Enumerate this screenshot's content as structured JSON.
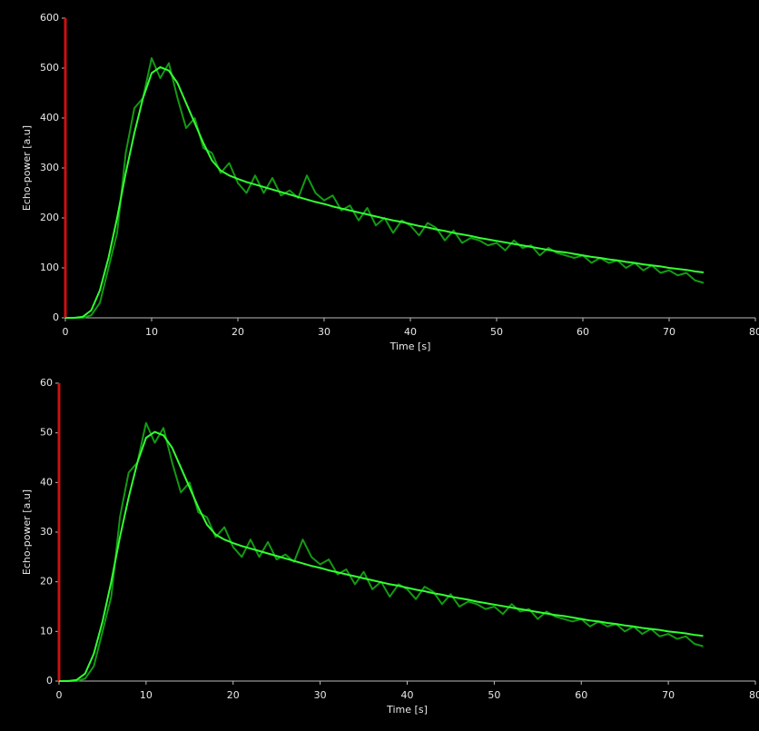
{
  "chart_data": [
    {
      "type": "line",
      "x_label": "Time [s]",
      "y_label": "Echo-power [a.u]",
      "xlim": [
        0,
        80
      ],
      "xticks": [
        0,
        10,
        20,
        30,
        40,
        50,
        60,
        70,
        80
      ],
      "ylim": [
        0,
        600
      ],
      "yticks": [
        0,
        100,
        200,
        300,
        400,
        500,
        600
      ],
      "x": [
        0,
        1,
        2,
        3,
        4,
        5,
        6,
        7,
        8,
        9,
        10,
        11,
        12,
        13,
        14,
        15,
        16,
        17,
        18,
        19,
        20,
        21,
        22,
        23,
        24,
        25,
        26,
        27,
        28,
        29,
        30,
        31,
        32,
        33,
        34,
        35,
        36,
        37,
        38,
        39,
        40,
        41,
        42,
        43,
        44,
        45,
        46,
        47,
        48,
        49,
        50,
        51,
        52,
        53,
        54,
        55,
        56,
        57,
        58,
        59,
        60,
        61,
        62,
        63,
        64,
        65,
        66,
        67,
        68,
        69,
        70,
        71,
        72,
        73,
        74
      ],
      "series": [
        {
          "color": "#129a12",
          "values": [
            0,
            0,
            0,
            5,
            30,
            100,
            170,
            330,
            420,
            440,
            520,
            480,
            510,
            440,
            380,
            400,
            340,
            330,
            290,
            310,
            270,
            250,
            285,
            250,
            280,
            245,
            255,
            240,
            285,
            250,
            235,
            245,
            215,
            225,
            195,
            220,
            185,
            200,
            170,
            195,
            185,
            165,
            190,
            180,
            155,
            175,
            150,
            160,
            155,
            145,
            150,
            135,
            155,
            140,
            145,
            125,
            140,
            130,
            125,
            120,
            125,
            110,
            120,
            110,
            115,
            100,
            110,
            95,
            105,
            90,
            95,
            85,
            90,
            75,
            70
          ]
        },
        {
          "color": "#33ff33",
          "values": [
            0,
            0,
            2,
            15,
            55,
            120,
            200,
            290,
            370,
            440,
            490,
            502,
            495,
            470,
            430,
            390,
            350,
            315,
            295,
            285,
            278,
            272,
            267,
            262,
            257,
            252,
            247,
            242,
            237,
            232,
            228,
            223,
            219,
            215,
            211,
            207,
            203,
            199,
            195,
            192,
            188,
            184,
            181,
            177,
            174,
            170,
            167,
            164,
            160,
            157,
            154,
            151,
            148,
            145,
            142,
            139,
            136,
            133,
            131,
            128,
            125,
            122,
            120,
            117,
            115,
            112,
            110,
            107,
            105,
            103,
            100,
            98,
            96,
            93,
            91
          ]
        }
      ]
    },
    {
      "type": "line",
      "x_label": "Time [s]",
      "y_label": "Echo-power [a.u]",
      "xlim": [
        0,
        80
      ],
      "xticks": [
        0,
        10,
        20,
        30,
        40,
        50,
        60,
        70,
        80
      ],
      "ylim": [
        0,
        60
      ],
      "yticks": [
        0,
        10,
        20,
        30,
        40,
        50,
        60
      ],
      "x": [
        0,
        1,
        2,
        3,
        4,
        5,
        6,
        7,
        8,
        9,
        10,
        11,
        12,
        13,
        14,
        15,
        16,
        17,
        18,
        19,
        20,
        21,
        22,
        23,
        24,
        25,
        26,
        27,
        28,
        29,
        30,
        31,
        32,
        33,
        34,
        35,
        36,
        37,
        38,
        39,
        40,
        41,
        42,
        43,
        44,
        45,
        46,
        47,
        48,
        49,
        50,
        51,
        52,
        53,
        54,
        55,
        56,
        57,
        58,
        59,
        60,
        61,
        62,
        63,
        64,
        65,
        66,
        67,
        68,
        69,
        70,
        71,
        72,
        73,
        74
      ],
      "series": [
        {
          "color": "#129a12",
          "values": [
            0,
            0,
            0,
            0.5,
            3,
            10,
            17,
            33,
            42,
            44,
            52,
            48,
            51,
            44,
            38,
            40,
            34,
            33,
            29,
            31,
            27,
            25,
            28.5,
            25,
            28,
            24.5,
            25.5,
            24,
            28.5,
            25,
            23.5,
            24.5,
            21.5,
            22.5,
            19.5,
            22,
            18.5,
            20,
            17,
            19.5,
            18.5,
            16.5,
            19,
            18,
            15.5,
            17.5,
            15,
            16,
            15.5,
            14.5,
            15,
            13.5,
            15.5,
            14,
            14.5,
            12.5,
            14,
            13,
            12.5,
            12,
            12.5,
            11,
            12,
            11,
            11.5,
            10,
            11,
            9.5,
            10.5,
            9,
            9.5,
            8.5,
            9,
            7.5,
            7
          ]
        },
        {
          "color": "#33ff33",
          "values": [
            0,
            0,
            0.2,
            1.5,
            5.5,
            12,
            20,
            29,
            37,
            44,
            49,
            50.2,
            49.5,
            47,
            43,
            39,
            35,
            31.5,
            29.5,
            28.5,
            27.8,
            27.2,
            26.7,
            26.2,
            25.7,
            25.2,
            24.7,
            24.2,
            23.7,
            23.2,
            22.8,
            22.3,
            21.9,
            21.5,
            21.1,
            20.7,
            20.3,
            19.9,
            19.5,
            19.2,
            18.8,
            18.4,
            18.1,
            17.7,
            17.4,
            17,
            16.7,
            16.4,
            16,
            15.7,
            15.4,
            15.1,
            14.8,
            14.5,
            14.2,
            13.9,
            13.6,
            13.3,
            13.1,
            12.8,
            12.5,
            12.2,
            12,
            11.7,
            11.5,
            11.2,
            11,
            10.7,
            10.5,
            10.3,
            10,
            9.8,
            9.6,
            9.3,
            9.1
          ]
        }
      ]
    }
  ]
}
